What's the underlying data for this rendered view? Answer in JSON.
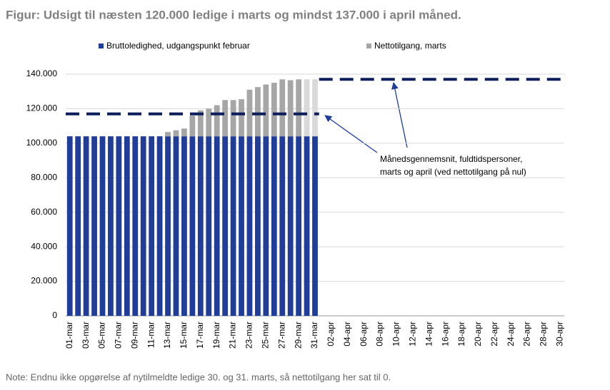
{
  "chart_data": {
    "type": "stacked_bar",
    "title": "Figur: Udsigt til næsten 120.000 ledige i marts og mindst 137.000 i april måned.",
    "note": "Note: Endnu ikke opgørelse af nytilmeldte ledige 30. og 31. marts, så nettotilgang her sat til 0.",
    "categories": [
      "01-mar",
      null,
      "03-mar",
      null,
      "05-mar",
      null,
      "07-mar",
      null,
      "09-mar",
      null,
      "11-mar",
      null,
      "13-mar",
      null,
      "15-mar",
      null,
      "17-mar",
      null,
      "19-mar",
      null,
      "21-mar",
      null,
      "23-mar",
      null,
      "25-mar",
      null,
      "27-mar",
      null,
      "29-mar",
      null,
      "31-mar",
      null,
      "02-apr",
      null,
      "04-apr",
      null,
      "06-apr",
      null,
      "08-apr",
      null,
      "10-apr",
      null,
      "12-apr",
      null,
      "14-apr",
      null,
      "16-apr",
      null,
      "18-apr",
      null,
      "20-apr",
      null,
      "22-apr",
      null,
      "24-apr",
      null,
      "26-apr",
      null,
      "28-apr",
      null,
      "30-apr"
    ],
    "series": [
      {
        "name": "Bruttoledighed, udgangspunkt februar",
        "color": "#1f3d99",
        "values": [
          104000,
          104000,
          104000,
          104000,
          104000,
          104000,
          104000,
          104000,
          104000,
          104000,
          104000,
          104000,
          104000,
          104000,
          104000,
          104000,
          104000,
          104000,
          104000,
          104000,
          104000,
          104000,
          104000,
          104000,
          104000,
          104000,
          104000,
          104000,
          104000,
          104000,
          104000,
          null,
          null,
          null,
          null,
          null,
          null,
          null,
          null,
          null,
          null,
          null,
          null,
          null,
          null,
          null,
          null,
          null,
          null,
          null,
          null,
          null,
          null,
          null,
          null,
          null,
          null,
          null,
          null,
          null,
          null
        ]
      },
      {
        "name": "Nettotilgang, marts",
        "color": "#a6a6a6",
        "point_colors": {
          "29": "#d9d9d9",
          "30": "#d9d9d9"
        },
        "values": [
          null,
          null,
          null,
          null,
          null,
          null,
          null,
          null,
          null,
          null,
          null,
          null,
          2500,
          3500,
          4500,
          12000,
          15000,
          16000,
          18000,
          21000,
          21000,
          21500,
          27000,
          28500,
          30000,
          31000,
          33000,
          32500,
          33000,
          33000,
          33000,
          null,
          null,
          null,
          null,
          null,
          null,
          null,
          null,
          null,
          null,
          null,
          null,
          null,
          null,
          null,
          null,
          null,
          null,
          null,
          null,
          null,
          null,
          null,
          null,
          null,
          null,
          null,
          null,
          null,
          null
        ]
      }
    ],
    "reference_lines": [
      {
        "value": 117000,
        "span": [
          0,
          30
        ]
      },
      {
        "value": 137000,
        "span": [
          31,
          60
        ]
      }
    ],
    "reference_color": "#0d1e5c",
    "annotation": [
      "Månedsgennemsnit, fuldtidspersoner,",
      "marts og april (ved nettotilgang på nul)"
    ],
    "ylim": [
      0,
      140000
    ],
    "yticks": [
      0,
      {
        "value": 20000,
        "label": "20.000"
      },
      {
        "value": 40000,
        "label": "40.000"
      },
      {
        "value": 60000,
        "label": "60.000"
      },
      {
        "value": 80000,
        "label": "80.000"
      },
      {
        "value": 100000,
        "label": "100.000"
      },
      {
        "value": 120000,
        "label": "120.000"
      },
      {
        "value": 140000,
        "label": "140.000"
      }
    ],
    "grid": true
  }
}
